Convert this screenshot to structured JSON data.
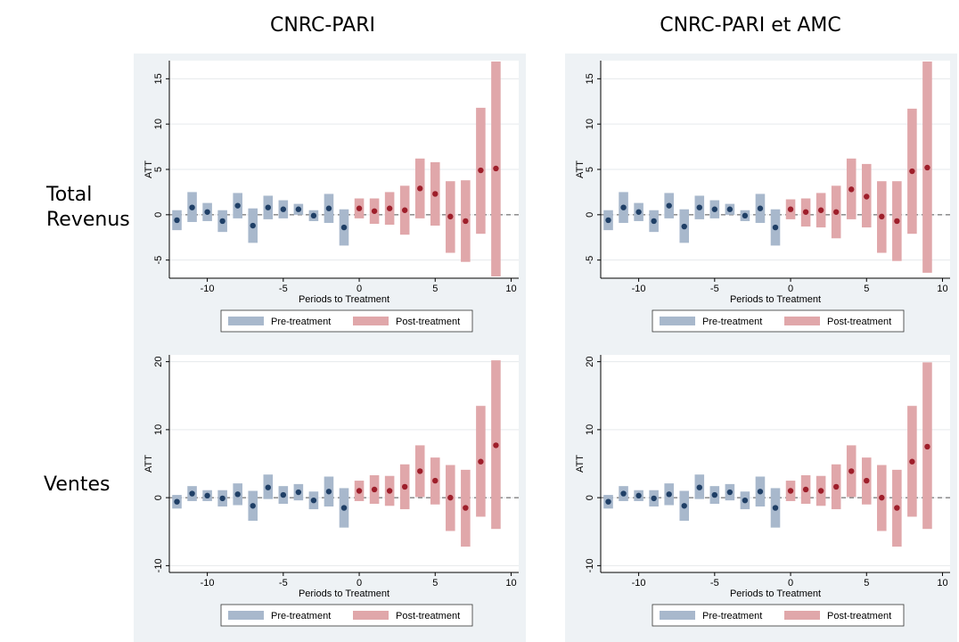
{
  "columns": [
    "CNRC-PARI",
    "CNRC-PARI et AMC"
  ],
  "rows": [
    [
      "Total",
      "Revenus"
    ],
    [
      "Ventes"
    ]
  ],
  "colors": {
    "pre": "#a8b8cc",
    "post": "#e0a7aa",
    "pre_dot": "#1f3f66",
    "post_dot": "#9e1e2a",
    "panel_bg": "#eef2f5"
  },
  "chart_data": [
    {
      "type": "scatter",
      "subtype": "event-study-ci",
      "panel": "Total Revenus / CNRC-PARI",
      "xlabel": "Periods to Treatment",
      "ylabel": "ATT",
      "xlim": [
        -12.5,
        10.5
      ],
      "ylim": [
        -7,
        17
      ],
      "xticks": [
        -10,
        -5,
        0,
        5,
        10
      ],
      "yticks": [
        -5,
        0,
        5,
        10,
        15
      ],
      "grid": true,
      "reference_line_y": 0,
      "legend_position": "bottom",
      "series": [
        {
          "name": "Pre-treatment",
          "x": [
            -12,
            -11,
            -10,
            -9,
            -8,
            -7,
            -6,
            -5,
            -4,
            -3,
            -2,
            -1
          ],
          "y": [
            -0.6,
            0.8,
            0.3,
            -0.7,
            1.0,
            -1.2,
            0.8,
            0.6,
            0.6,
            -0.1,
            0.7,
            -1.4
          ],
          "lower": [
            -1.7,
            -0.8,
            -0.7,
            -1.9,
            -0.4,
            -3.1,
            -0.5,
            -0.4,
            0.0,
            -0.7,
            -0.9,
            -3.4
          ],
          "upper": [
            0.5,
            2.5,
            1.3,
            0.5,
            2.4,
            0.7,
            2.1,
            1.6,
            1.2,
            0.5,
            2.3,
            0.6
          ]
        },
        {
          "name": "Post-treatment",
          "x": [
            0,
            1,
            2,
            3,
            4,
            5,
            6,
            7,
            8,
            9
          ],
          "y": [
            0.7,
            0.4,
            0.7,
            0.5,
            2.9,
            2.3,
            -0.2,
            -0.7,
            4.9,
            5.1
          ],
          "lower": [
            -0.4,
            -1.0,
            -1.1,
            -2.2,
            -0.4,
            -1.2,
            -4.2,
            -5.2,
            -2.1,
            -6.8
          ],
          "upper": [
            1.8,
            1.8,
            2.5,
            3.2,
            6.2,
            5.8,
            3.7,
            3.8,
            11.8,
            16.9
          ]
        }
      ]
    },
    {
      "type": "scatter",
      "subtype": "event-study-ci",
      "panel": "Total Revenus / CNRC-PARI et AMC",
      "xlabel": "Periods to Treatment",
      "ylabel": "ATT",
      "xlim": [
        -12.5,
        10.5
      ],
      "ylim": [
        -7,
        17
      ],
      "xticks": [
        -10,
        -5,
        0,
        5,
        10
      ],
      "yticks": [
        -5,
        0,
        5,
        10,
        15
      ],
      "grid": true,
      "reference_line_y": 0,
      "legend_position": "bottom",
      "series": [
        {
          "name": "Pre-treatment",
          "x": [
            -12,
            -11,
            -10,
            -9,
            -8,
            -7,
            -6,
            -5,
            -4,
            -3,
            -2,
            -1
          ],
          "y": [
            -0.6,
            0.8,
            0.3,
            -0.7,
            1.0,
            -1.3,
            0.8,
            0.6,
            0.6,
            -0.1,
            0.7,
            -1.4
          ],
          "lower": [
            -1.7,
            -0.9,
            -0.7,
            -1.9,
            -0.4,
            -3.1,
            -0.5,
            -0.4,
            0.0,
            -0.7,
            -0.9,
            -3.4
          ],
          "upper": [
            0.5,
            2.5,
            1.3,
            0.5,
            2.4,
            0.6,
            2.1,
            1.6,
            1.2,
            0.5,
            2.3,
            0.6
          ]
        },
        {
          "name": "Post-treatment",
          "x": [
            0,
            1,
            2,
            3,
            4,
            5,
            6,
            7,
            8,
            9
          ],
          "y": [
            0.6,
            0.3,
            0.5,
            0.3,
            2.8,
            2.0,
            -0.2,
            -0.7,
            4.8,
            5.2
          ],
          "lower": [
            -0.5,
            -1.3,
            -1.4,
            -2.6,
            -0.5,
            -1.4,
            -4.2,
            -5.1,
            -2.1,
            -6.4
          ],
          "upper": [
            1.7,
            1.8,
            2.4,
            3.2,
            6.2,
            5.6,
            3.7,
            3.7,
            11.7,
            16.9
          ]
        }
      ]
    },
    {
      "type": "scatter",
      "subtype": "event-study-ci",
      "panel": "Ventes / CNRC-PARI",
      "xlabel": "Periods to Treatment",
      "ylabel": "ATT",
      "xlim": [
        -12.5,
        10.5
      ],
      "ylim": [
        -11,
        21
      ],
      "xticks": [
        -10,
        -5,
        0,
        5,
        10
      ],
      "yticks": [
        -10,
        0,
        10,
        20
      ],
      "grid": true,
      "reference_line_y": 0,
      "legend_position": "bottom",
      "series": [
        {
          "name": "Pre-treatment",
          "x": [
            -12,
            -11,
            -10,
            -9,
            -8,
            -7,
            -6,
            -5,
            -4,
            -3,
            -2,
            -1
          ],
          "y": [
            -0.6,
            0.6,
            0.3,
            -0.1,
            0.5,
            -1.2,
            1.5,
            0.4,
            0.8,
            -0.4,
            0.9,
            -1.5
          ],
          "lower": [
            -1.6,
            -0.5,
            -0.5,
            -1.3,
            -1.1,
            -3.4,
            -0.2,
            -0.9,
            -0.4,
            -1.7,
            -1.3,
            -4.4
          ],
          "upper": [
            0.4,
            1.7,
            1.1,
            1.1,
            2.1,
            1.0,
            3.4,
            1.7,
            2.0,
            0.9,
            3.1,
            1.4
          ]
        },
        {
          "name": "Post-treatment",
          "x": [
            0,
            1,
            2,
            3,
            4,
            5,
            6,
            7,
            8,
            9
          ],
          "y": [
            1.0,
            1.2,
            1.0,
            1.6,
            3.9,
            2.5,
            0.0,
            -1.5,
            5.3,
            7.7
          ],
          "lower": [
            -0.5,
            -0.9,
            -1.2,
            -1.7,
            0.1,
            -1.0,
            -4.9,
            -7.2,
            -2.8,
            -4.6
          ],
          "upper": [
            2.5,
            3.3,
            3.2,
            4.9,
            7.7,
            5.9,
            4.8,
            4.1,
            13.5,
            20.2
          ]
        }
      ]
    },
    {
      "type": "scatter",
      "subtype": "event-study-ci",
      "panel": "Ventes / CNRC-PARI et AMC",
      "xlabel": "Periods to Treatment",
      "ylabel": "ATT",
      "xlim": [
        -12.5,
        10.5
      ],
      "ylim": [
        -11,
        21
      ],
      "xticks": [
        -10,
        -5,
        0,
        5,
        10
      ],
      "yticks": [
        -10,
        0,
        10,
        20
      ],
      "grid": true,
      "reference_line_y": 0,
      "legend_position": "bottom",
      "series": [
        {
          "name": "Pre-treatment",
          "x": [
            -12,
            -11,
            -10,
            -9,
            -8,
            -7,
            -6,
            -5,
            -4,
            -3,
            -2,
            -1
          ],
          "y": [
            -0.6,
            0.6,
            0.3,
            -0.1,
            0.5,
            -1.2,
            1.5,
            0.4,
            0.8,
            -0.4,
            0.9,
            -1.5
          ],
          "lower": [
            -1.6,
            -0.5,
            -0.5,
            -1.3,
            -1.1,
            -3.4,
            -0.2,
            -0.9,
            -0.4,
            -1.7,
            -1.3,
            -4.4
          ],
          "upper": [
            0.4,
            1.7,
            1.1,
            1.1,
            2.1,
            1.0,
            3.4,
            1.7,
            2.0,
            0.9,
            3.1,
            1.4
          ]
        },
        {
          "name": "Post-treatment",
          "x": [
            0,
            1,
            2,
            3,
            4,
            5,
            6,
            7,
            8,
            9
          ],
          "y": [
            1.0,
            1.2,
            1.0,
            1.6,
            3.9,
            2.5,
            0.0,
            -1.5,
            5.3,
            7.5
          ],
          "lower": [
            -0.5,
            -0.9,
            -1.2,
            -1.7,
            0.1,
            -1.0,
            -4.9,
            -7.2,
            -2.8,
            -4.6
          ],
          "upper": [
            2.5,
            3.3,
            3.2,
            4.9,
            7.7,
            5.9,
            4.8,
            4.1,
            13.5,
            19.9
          ]
        }
      ]
    }
  ]
}
